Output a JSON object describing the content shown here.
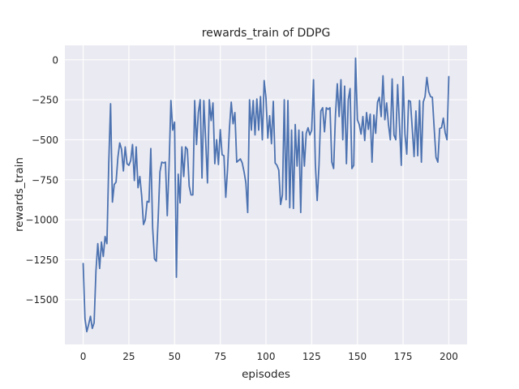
{
  "figure": {
    "background": "#ffffff",
    "axes_background": "#eaeaf2",
    "grid_color": "#ffffff",
    "text_color": "#262626"
  },
  "chart_data": {
    "type": "line",
    "title": "rewards_train of DDPG",
    "xlabel": "episodes",
    "ylabel": "rewards_train",
    "x_ticks": [
      0,
      25,
      50,
      75,
      100,
      125,
      150,
      175,
      200
    ],
    "y_ticks": [
      0,
      -250,
      -500,
      -750,
      -1000,
      -1250,
      -1500
    ],
    "xlim": [
      -10,
      210
    ],
    "ylim": [
      -1780,
      90
    ],
    "grid": true,
    "legend": "none",
    "line_color": "#4c72b0",
    "series": [
      {
        "name": "rewards_train",
        "x_start": 0,
        "x_step": 1,
        "values": [
          -1274,
          -1620,
          -1700,
          -1655,
          -1604,
          -1680,
          -1645,
          -1320,
          -1150,
          -1305,
          -1140,
          -1230,
          -1105,
          -1150,
          -645,
          -275,
          -890,
          -780,
          -765,
          -610,
          -520,
          -560,
          -695,
          -545,
          -650,
          -660,
          -630,
          -530,
          -755,
          -545,
          -800,
          -730,
          -850,
          -1030,
          -1000,
          -885,
          -890,
          -555,
          -1050,
          -1245,
          -1260,
          -1000,
          -700,
          -640,
          -645,
          -640,
          -975,
          -660,
          -255,
          -440,
          -390,
          -1360,
          -715,
          -895,
          -545,
          -730,
          -545,
          -560,
          -790,
          -845,
          -845,
          -255,
          -530,
          -330,
          -250,
          -740,
          -255,
          -500,
          -770,
          -250,
          -380,
          -270,
          -650,
          -500,
          -655,
          -437,
          -594,
          -600,
          -860,
          -680,
          -430,
          -265,
          -400,
          -330,
          -640,
          -630,
          -620,
          -645,
          -700,
          -770,
          -955,
          -250,
          -440,
          -255,
          -470,
          -245,
          -440,
          -230,
          -500,
          -130,
          -240,
          -490,
          -350,
          -525,
          -260,
          -645,
          -660,
          -690,
          -905,
          -845,
          -250,
          -875,
          -255,
          -925,
          -440,
          -930,
          -405,
          -665,
          -440,
          -955,
          -450,
          -665,
          -460,
          -425,
          -470,
          -440,
          -125,
          -650,
          -880,
          -660,
          -320,
          -300,
          -450,
          -300,
          -310,
          -300,
          -640,
          -680,
          -345,
          -150,
          -355,
          -125,
          -500,
          -165,
          -650,
          -250,
          -180,
          -680,
          -660,
          10,
          -375,
          -405,
          -465,
          -355,
          -505,
          -330,
          -435,
          -340,
          -640,
          -345,
          -460,
          -265,
          -235,
          -355,
          -100,
          -375,
          -270,
          -405,
          -500,
          -120,
          -470,
          -500,
          -155,
          -405,
          -660,
          -105,
          -465,
          -590,
          -255,
          -260,
          -430,
          -605,
          -320,
          -600,
          -255,
          -640,
          -265,
          -230,
          -110,
          -200,
          -230,
          -235,
          -430,
          -610,
          -640,
          -430,
          -425,
          -365,
          -455,
          -500,
          -105
        ]
      }
    ]
  }
}
